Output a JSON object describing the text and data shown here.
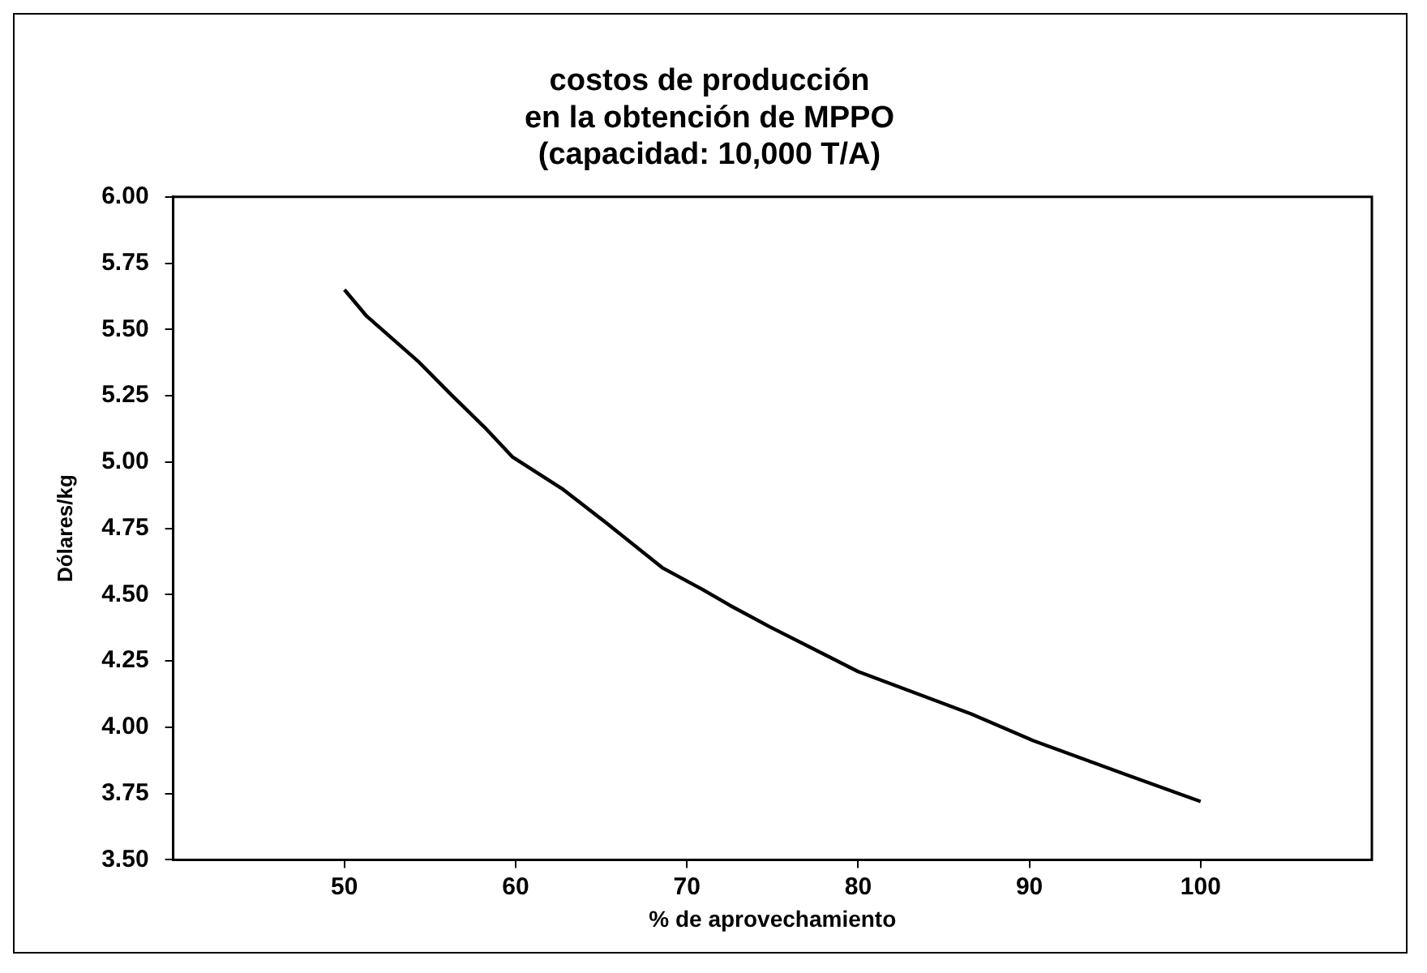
{
  "chart_data": {
    "type": "line",
    "title": "costos de producción\nen la obtención de MPPO\n(capacidad: 10,000 T/A)",
    "xlabel": "% de aprovechamiento",
    "ylabel": "Dólares/kg",
    "x": [
      50,
      51.3,
      54.3,
      56.3,
      58.2,
      59.8,
      62.7,
      65.3,
      68.6,
      70.9,
      72.5,
      74.8,
      80,
      86.6,
      90.2,
      95.7,
      100
    ],
    "series": [
      {
        "color": "#000000",
        "values": [
          5.65,
          5.55,
          5.38,
          5.25,
          5.13,
          5.02,
          4.9,
          4.77,
          4.6,
          4.52,
          4.46,
          4.38,
          4.21,
          4.05,
          3.95,
          3.82,
          3.72
        ]
      }
    ],
    "xlim": [
      40,
      110
    ],
    "xticks": [
      50,
      60,
      70,
      80,
      90,
      100
    ],
    "ylim": [
      3.5,
      6
    ],
    "yticks": [
      {
        "value": 3.5,
        "label": "3.50"
      },
      {
        "value": 3.75,
        "label": "3.75"
      },
      {
        "value": 4,
        "label": "4.00"
      },
      {
        "value": 4.25,
        "label": "4.25"
      },
      {
        "value": 4.5,
        "label": "4.50"
      },
      {
        "value": 4.75,
        "label": "4.75"
      },
      {
        "value": 5,
        "label": "5.00"
      },
      {
        "value": 5.25,
        "label": "5.25"
      },
      {
        "value": 5.5,
        "label": "5.50"
      },
      {
        "value": 5.75,
        "label": "5.75"
      },
      {
        "value": 6,
        "label": "6.00"
      }
    ],
    "grid": false,
    "legend": false,
    "marker": "none",
    "line_style": "solid"
  }
}
